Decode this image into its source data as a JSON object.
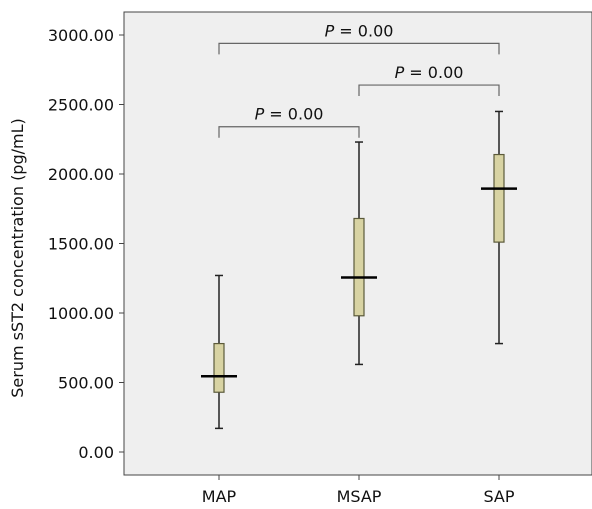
{
  "chart_data": {
    "type": "boxplot",
    "ylabel": "Serum sST2 concentration  (pg/mL)",
    "xlabel": "",
    "ylim": [
      0,
      3000
    ],
    "yticks": [
      0,
      500,
      1000,
      1500,
      2000,
      2500,
      3000
    ],
    "ytick_labels": [
      "0.00",
      "500.00",
      "1000.00",
      "1500.00",
      "2000.00",
      "2500.00",
      "3000.00"
    ],
    "categories": [
      "MAP",
      "MSAP",
      "SAP"
    ],
    "boxes": [
      {
        "category": "MAP",
        "min": 170,
        "q1": 430,
        "median": 545,
        "q3": 780,
        "max": 1270
      },
      {
        "category": "MSAP",
        "min": 630,
        "q1": 980,
        "median": 1255,
        "q3": 1680,
        "max": 2230
      },
      {
        "category": "SAP",
        "min": 780,
        "q1": 1510,
        "median": 1895,
        "q3": 2140,
        "max": 2450
      }
    ],
    "significance": [
      {
        "from": "MAP",
        "to": "SAP",
        "p_symbol": "P",
        "p_text": " = 0.00",
        "y": 2940
      },
      {
        "from": "MSAP",
        "to": "SAP",
        "p_symbol": "P",
        "p_text": " = 0.00",
        "y": 2640
      },
      {
        "from": "MAP",
        "to": "MSAP",
        "p_symbol": "P",
        "p_text": " = 0.00",
        "y": 2340
      }
    ],
    "grid": false,
    "colors": {
      "plot_background": "#efefef",
      "box_fill": "#d8d3a3",
      "box_stroke": "#5b5a3a",
      "median": "#000000",
      "bracket": "#666666"
    }
  }
}
